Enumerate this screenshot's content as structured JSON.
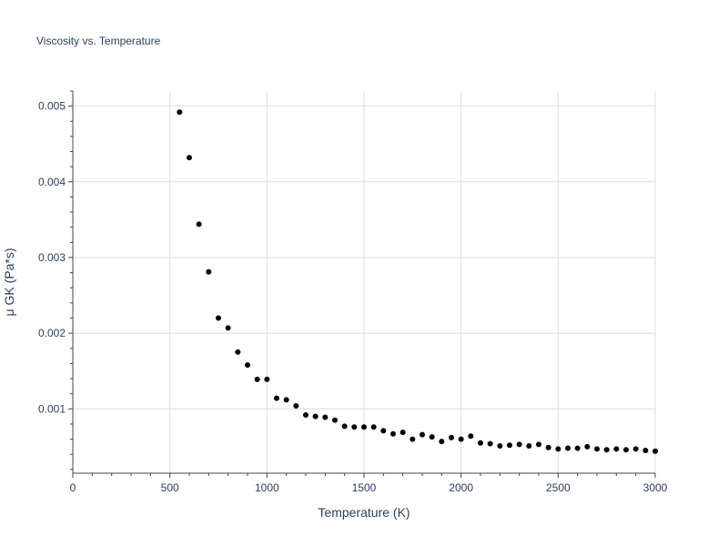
{
  "chart_data": {
    "type": "scatter",
    "title": "Viscosity vs. Temperature",
    "xlabel": "Temperature (K)",
    "ylabel": "μ GK (Pa*s)",
    "xlim": [
      0,
      3000
    ],
    "ylim": [
      0.00015,
      0.0052
    ],
    "x_ticks": [
      0,
      500,
      1000,
      1500,
      2000,
      2500,
      3000
    ],
    "x_tick_labels": [
      "0",
      "500",
      "1000",
      "1500",
      "2000",
      "2500",
      "3000"
    ],
    "y_ticks": [
      0.001,
      0.002,
      0.003,
      0.004,
      0.005
    ],
    "y_tick_labels": [
      "0.001",
      "0.002",
      "0.003",
      "0.004",
      "0.005"
    ],
    "grid": true,
    "marker_color": "#000000",
    "series": [
      {
        "x": [
          550,
          600,
          650,
          700,
          750,
          800,
          850,
          900,
          950,
          1000,
          1050,
          1100,
          1150,
          1200,
          1250,
          1300,
          1350,
          1400,
          1450,
          1500,
          1550,
          1600,
          1650,
          1700,
          1750,
          1800,
          1850,
          1900,
          1950,
          2000,
          2050,
          2100,
          2150,
          2200,
          2250,
          2300,
          2350,
          2400,
          2450,
          2500,
          2550,
          2600,
          2650,
          2700,
          2750,
          2800,
          2850,
          2900,
          2950,
          3000
        ],
        "y": [
          0.00492,
          0.00432,
          0.00344,
          0.00281,
          0.0022,
          0.00207,
          0.00175,
          0.00158,
          0.00139,
          0.00139,
          0.00114,
          0.00112,
          0.00104,
          0.00092,
          0.0009,
          0.00089,
          0.00085,
          0.00077,
          0.00076,
          0.00076,
          0.00076,
          0.00071,
          0.00067,
          0.00069,
          0.0006,
          0.00066,
          0.00063,
          0.00057,
          0.00062,
          0.0006,
          0.00064,
          0.00055,
          0.00054,
          0.00051,
          0.00052,
          0.00053,
          0.00051,
          0.00053,
          0.00049,
          0.00047,
          0.00048,
          0.00048,
          0.0005,
          0.00047,
          0.00046,
          0.00047,
          0.00046,
          0.00047,
          0.00045,
          0.00044
        ]
      }
    ]
  }
}
